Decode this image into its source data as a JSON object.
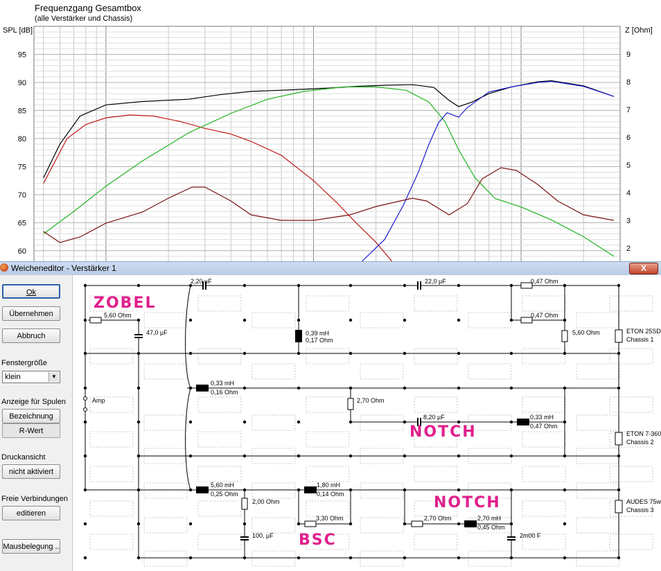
{
  "chart": {
    "title": "Frequenzgang Gesamtbox",
    "subtitle": "(alle Verstärker und Chassis)",
    "left_axis_label": "SPL [dB]",
    "right_axis_label": "Z [Ohm]",
    "left_ticks": [
      "95",
      "90",
      "85",
      "80",
      "75",
      "70",
      "65",
      "60"
    ],
    "right_ticks": [
      "9",
      "8",
      "7",
      "6",
      "5",
      "4",
      "3",
      "2"
    ]
  },
  "chart_data": {
    "type": "line",
    "xscale": "log",
    "ylim_left": [
      58,
      100
    ],
    "ylim_right": [
      1.5,
      10
    ],
    "series": [
      {
        "color": "#000000",
        "axis": "left",
        "points": [
          [
            50,
            73
          ],
          [
            60,
            79
          ],
          [
            75,
            84
          ],
          [
            100,
            86
          ],
          [
            150,
            86.6
          ],
          [
            250,
            87
          ],
          [
            350,
            87.8
          ],
          [
            500,
            88.4
          ],
          [
            800,
            88.7
          ],
          [
            1200,
            89
          ],
          [
            1600,
            89.3
          ],
          [
            2200,
            89.5
          ],
          [
            3000,
            89.6
          ],
          [
            3800,
            89.1
          ],
          [
            4500,
            86.8
          ],
          [
            5000,
            85.7
          ],
          [
            5800,
            86.5
          ],
          [
            7000,
            88
          ],
          [
            9000,
            89.2
          ],
          [
            12000,
            90.1
          ],
          [
            14000,
            90.3
          ],
          [
            20000,
            89.4
          ],
          [
            28000,
            87.5
          ]
        ]
      },
      {
        "color": "#c01818",
        "axis": "left",
        "points": [
          [
            50,
            72
          ],
          [
            65,
            80
          ],
          [
            80,
            82.5
          ],
          [
            100,
            83.7
          ],
          [
            130,
            84.2
          ],
          [
            170,
            84
          ],
          [
            230,
            83
          ],
          [
            300,
            81.8
          ],
          [
            400,
            80.8
          ],
          [
            500,
            79.5
          ],
          [
            700,
            77
          ],
          [
            1000,
            72.5
          ],
          [
            1300,
            68.5
          ],
          [
            1600,
            65
          ],
          [
            2000,
            61.5
          ],
          [
            2400,
            58
          ]
        ]
      },
      {
        "color": "#1fb41f",
        "axis": "left",
        "points": [
          [
            50,
            63
          ],
          [
            70,
            67
          ],
          [
            100,
            71.5
          ],
          [
            150,
            76
          ],
          [
            250,
            81
          ],
          [
            400,
            84.5
          ],
          [
            600,
            87
          ],
          [
            900,
            88.4
          ],
          [
            1400,
            89.2
          ],
          [
            2000,
            89.2
          ],
          [
            2800,
            88.6
          ],
          [
            3600,
            86.5
          ],
          [
            4300,
            83
          ],
          [
            5000,
            78
          ],
          [
            6000,
            73
          ],
          [
            7500,
            69.3
          ],
          [
            10000,
            67.8
          ],
          [
            14000,
            65.5
          ],
          [
            20000,
            62.5
          ],
          [
            28000,
            59
          ]
        ]
      },
      {
        "color": "#1a1ad0",
        "axis": "left",
        "points": [
          [
            1700,
            58
          ],
          [
            2200,
            62
          ],
          [
            2700,
            68
          ],
          [
            3200,
            74
          ],
          [
            3600,
            79
          ],
          [
            4000,
            82.8
          ],
          [
            4400,
            84.6
          ],
          [
            5000,
            83.8
          ],
          [
            5500,
            85.5
          ],
          [
            7000,
            88.3
          ],
          [
            9000,
            89.2
          ],
          [
            12000,
            90
          ],
          [
            14000,
            90.2
          ],
          [
            20000,
            89.3
          ],
          [
            28000,
            87.5
          ]
        ]
      },
      {
        "color": "#7a1010",
        "axis": "right",
        "points": [
          [
            50,
            2.6
          ],
          [
            60,
            2.2
          ],
          [
            75,
            2.4
          ],
          [
            100,
            2.9
          ],
          [
            150,
            3.3
          ],
          [
            200,
            3.8
          ],
          [
            260,
            4.2
          ],
          [
            300,
            4.2
          ],
          [
            400,
            3.7
          ],
          [
            500,
            3.2
          ],
          [
            700,
            3.0
          ],
          [
            1000,
            3.0
          ],
          [
            1500,
            3.2
          ],
          [
            2000,
            3.5
          ],
          [
            3000,
            3.8
          ],
          [
            3500,
            3.7
          ],
          [
            4500,
            3.2
          ],
          [
            5500,
            3.6
          ],
          [
            6500,
            4.5
          ],
          [
            8000,
            4.9
          ],
          [
            9500,
            4.8
          ],
          [
            12000,
            4.3
          ],
          [
            15000,
            3.7
          ],
          [
            20000,
            3.2
          ],
          [
            28000,
            3.0
          ]
        ]
      }
    ]
  },
  "dialog": {
    "title": "Weicheneditor - Verstärker 1",
    "close": "X"
  },
  "sidebar": {
    "ok": "Ok",
    "apply": "Übernehmen",
    "cancel": "Abbruch",
    "size_label": "Fenstergröße",
    "size_value": "klein",
    "coil_label": "Anzeige für Spulen",
    "coil_name": "Bezeichnung",
    "coil_r": "R-Wert",
    "print_label": "Druckansicht",
    "print_value": "nicht aktiviert",
    "free_label": "Freie Verbindungen",
    "free_value": "editieren",
    "mouse": "Mausbelegung .."
  },
  "schematic": {
    "labels": {
      "c1": "2,20 µF",
      "c2": "22,0 µF",
      "r1a": "0,47 Ohm",
      "r1b": "0,47 Ohm",
      "zr": "5,60 Ohm",
      "zc": "47,0 µF",
      "l1a": "0,39 mH",
      "l1b": "0,17 Ohm",
      "r560": "5,60 Ohm",
      "ch1a": "ETON 25SD",
      "ch1b": "Chassis 1",
      "l2a": "0,33 mH",
      "l2b": "0,16 Ohm",
      "r270": "2,70 Ohm",
      "c82": "8,20 µF",
      "l3a": "0,33 mH",
      "l3b": "0,47 Ohm",
      "amp": "Amp",
      "ch2a": "ETON 7-360",
      "ch2b": "Chassis 2",
      "l4a": "5,60 mH",
      "l4b": "0,25 Ohm",
      "l5a": "1,80 mH",
      "l5b": "0,14 Ohm",
      "r200": "2,00 Ohm",
      "r330": "3,30 Ohm",
      "c100": "100, µF",
      "r270b": "2,70 Ohm",
      "l6a": "2,70 mH",
      "l6b": "0,45 Ohm",
      "c2m": "2m00 F",
      "ch3a": "AUDES 75w",
      "ch3b": "Chassis 3"
    },
    "notes": {
      "zobel": "ZOBEL",
      "notch1": "NOTCH",
      "notch2": "NOTCH",
      "bsc": "BSC"
    }
  }
}
